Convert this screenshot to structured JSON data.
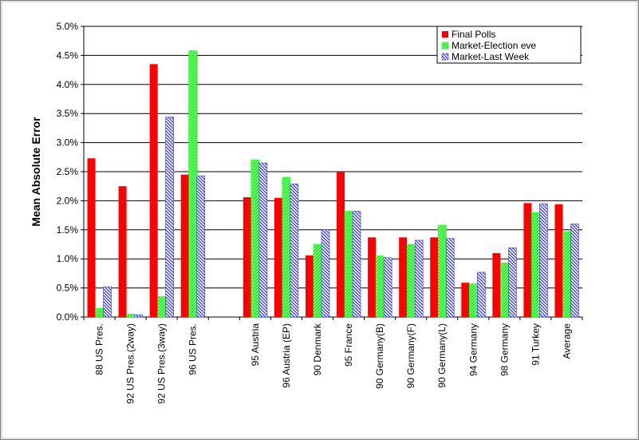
{
  "chart_data": {
    "type": "bar",
    "ylabel": "Mean Absolute Error",
    "categories": [
      "88 US Pres.",
      "92 US Pres.(2way)",
      "92 US Pres.(3way)",
      "96 US Pres.",
      null,
      "95 Austria",
      "96 Austria (EP)",
      "90 Denmark",
      "95 France",
      "90 Germany(B)",
      "90 Germany(F)",
      "90 Germany(L)",
      "94 Germany",
      "98 Germany",
      "91 Turkey",
      "Average"
    ],
    "series": [
      {
        "name": "Final Polls",
        "color": "#ff0000",
        "hatch": false,
        "values": [
          2.73,
          2.25,
          4.35,
          2.45,
          null,
          2.06,
          2.05,
          1.06,
          2.5,
          1.37,
          1.37,
          1.37,
          0.59,
          1.1,
          1.96,
          1.94
        ]
      },
      {
        "name": "Market-Election eve",
        "color": "#00ff00",
        "hatch": true,
        "values": [
          0.15,
          0.05,
          0.35,
          4.58,
          null,
          2.7,
          2.4,
          1.25,
          1.82,
          1.05,
          1.25,
          1.58,
          0.57,
          0.93,
          1.8,
          1.47
        ]
      },
      {
        "name": "Market-Last Week",
        "color": "#3333cc",
        "hatch": true,
        "values": [
          0.52,
          0.04,
          3.44,
          2.43,
          null,
          2.65,
          2.29,
          1.5,
          1.82,
          1.02,
          1.32,
          1.35,
          0.77,
          1.19,
          1.95,
          1.6
        ]
      }
    ],
    "ylim": [
      0,
      5
    ],
    "yticks": [
      {
        "value": 0,
        "label": "0.0%"
      },
      {
        "value": 0.5,
        "label": "0.5%"
      },
      {
        "value": 1,
        "label": "1.0%"
      },
      {
        "value": 1.5,
        "label": "1.5%"
      },
      {
        "value": 2,
        "label": "2.0%"
      },
      {
        "value": 2.5,
        "label": "2.5%"
      },
      {
        "value": 3,
        "label": "3.0%"
      },
      {
        "value": 3.5,
        "label": "3.5%"
      },
      {
        "value": 4,
        "label": "4.0%"
      },
      {
        "value": 4.5,
        "label": "4.5%"
      },
      {
        "value": 5,
        "label": "5.0%"
      }
    ],
    "grid": true,
    "legend": "top-right"
  }
}
